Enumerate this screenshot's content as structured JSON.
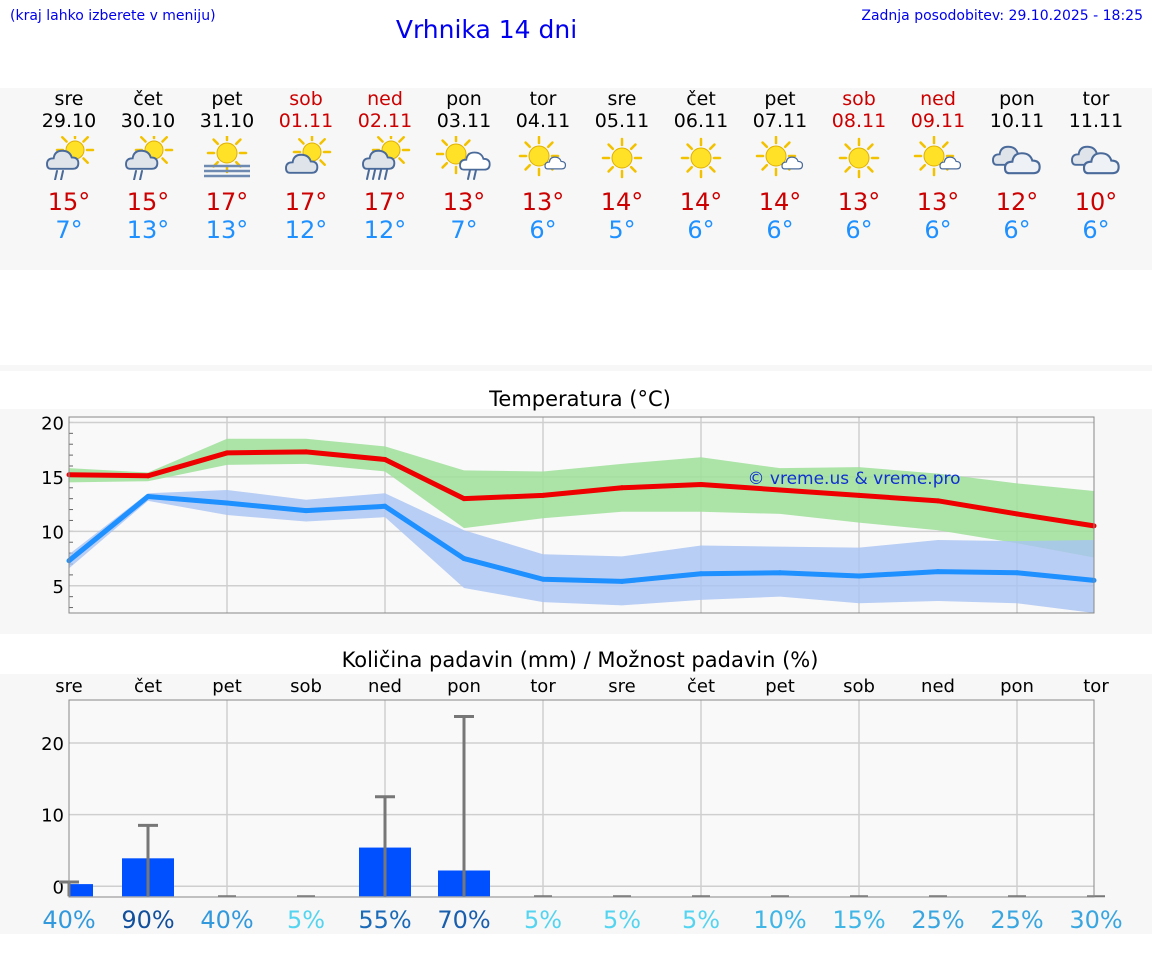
{
  "header": {
    "hint": "(kraj lahko izberete v meniju)",
    "title": "Vrhnika 14 dni",
    "updated": "Zadnja posodobitev: 29.10.2025 - 18:25"
  },
  "days": [
    {
      "name": "sre",
      "date": "29.10",
      "weekend": false,
      "icon": "sun-cloud-rain-icon",
      "tmax": "15°",
      "tmin": "7°"
    },
    {
      "name": "čet",
      "date": "30.10",
      "weekend": false,
      "icon": "sun-cloud-rain-icon",
      "tmax": "15°",
      "tmin": "13°"
    },
    {
      "name": "pet",
      "date": "31.10",
      "weekend": false,
      "icon": "sun-fog-icon",
      "tmax": "17°",
      "tmin": "13°"
    },
    {
      "name": "sob",
      "date": "01.11",
      "weekend": true,
      "icon": "sun-cloud-icon",
      "tmax": "17°",
      "tmin": "12°"
    },
    {
      "name": "ned",
      "date": "02.11",
      "weekend": true,
      "icon": "sun-cloud-heavy-rain-icon",
      "tmax": "17°",
      "tmin": "12°"
    },
    {
      "name": "pon",
      "date": "03.11",
      "weekend": false,
      "icon": "sun-cloud-light-rain-icon",
      "tmax": "13°",
      "tmin": "7°"
    },
    {
      "name": "tor",
      "date": "04.11",
      "weekend": false,
      "icon": "sun-small-cloud-icon",
      "tmax": "13°",
      "tmin": "6°"
    },
    {
      "name": "sre",
      "date": "05.11",
      "weekend": false,
      "icon": "sun-icon",
      "tmax": "14°",
      "tmin": "5°"
    },
    {
      "name": "čet",
      "date": "06.11",
      "weekend": false,
      "icon": "sun-icon",
      "tmax": "14°",
      "tmin": "6°"
    },
    {
      "name": "pet",
      "date": "07.11",
      "weekend": false,
      "icon": "sun-small-cloud-icon",
      "tmax": "14°",
      "tmin": "6°"
    },
    {
      "name": "sob",
      "date": "08.11",
      "weekend": true,
      "icon": "sun-icon",
      "tmax": "13°",
      "tmin": "6°"
    },
    {
      "name": "ned",
      "date": "09.11",
      "weekend": true,
      "icon": "sun-small-cloud-icon",
      "tmax": "13°",
      "tmin": "6°"
    },
    {
      "name": "pon",
      "date": "10.11",
      "weekend": false,
      "icon": "clouds-icon",
      "tmax": "12°",
      "tmin": "6°"
    },
    {
      "name": "tor",
      "date": "11.11",
      "weekend": false,
      "icon": "clouds-icon",
      "tmax": "10°",
      "tmin": "6°"
    }
  ],
  "chart_data": [
    {
      "type": "line",
      "title": "Temperatura (°C)",
      "watermark": "© vreme.us & vreme.pro",
      "ylim": [
        2.5,
        20.5
      ],
      "yticks": [
        5,
        10,
        15,
        20
      ],
      "x_days": 14,
      "series": [
        {
          "name": "max",
          "color": "#ee0000",
          "values": [
            15.2,
            15.1,
            17.2,
            17.3,
            16.6,
            13.0,
            13.3,
            14.0,
            14.3,
            13.8,
            13.3,
            12.8,
            11.6,
            10.5
          ],
          "band_low": [
            14.5,
            14.6,
            16.1,
            16.2,
            15.5,
            10.3,
            11.2,
            11.8,
            11.8,
            11.6,
            10.8,
            10.1,
            8.9,
            7.6
          ],
          "band_high": [
            15.8,
            15.4,
            18.5,
            18.5,
            17.8,
            15.6,
            15.5,
            16.2,
            16.8,
            15.8,
            15.9,
            15.3,
            14.4,
            13.7
          ],
          "band_color": "#9fe09a"
        },
        {
          "name": "min",
          "color": "#1e90ff",
          "values": [
            7.3,
            13.2,
            12.6,
            11.9,
            12.3,
            7.5,
            5.6,
            5.4,
            6.1,
            6.2,
            5.9,
            6.3,
            6.2,
            5.5
          ],
          "band_low": [
            6.6,
            12.8,
            11.5,
            10.9,
            11.3,
            4.8,
            3.5,
            3.2,
            3.7,
            4.0,
            3.4,
            3.6,
            3.4,
            2.5
          ],
          "band_high": [
            7.9,
            13.5,
            13.8,
            12.9,
            13.5,
            10.1,
            7.9,
            7.7,
            8.7,
            8.6,
            8.5,
            9.2,
            9.1,
            9.2
          ],
          "band_color": "#a9c3f3"
        }
      ]
    },
    {
      "type": "bar",
      "title": "Količina padavin (mm) / Možnost padavin (%)",
      "categories": [
        "sre",
        "čet",
        "pet",
        "sob",
        "ned",
        "pon",
        "tor",
        "sre",
        "čet",
        "pet",
        "sob",
        "ned",
        "pon",
        "tor"
      ],
      "ylim": [
        -1.5,
        26
      ],
      "yticks": [
        0,
        10,
        20
      ],
      "values": [
        0.3,
        3.9,
        0,
        0,
        5.4,
        2.2,
        0,
        0,
        0,
        0,
        0,
        0,
        0,
        0
      ],
      "error_high": [
        0.6,
        8.5,
        0,
        0,
        12.5,
        23.7,
        0,
        0,
        0,
        0,
        0,
        0,
        0,
        0
      ],
      "bar_color": "#0050ff",
      "probability": [
        {
          "label": "40%",
          "color": "#3399dd"
        },
        {
          "label": "90%",
          "color": "#124f9c"
        },
        {
          "label": "40%",
          "color": "#3399dd"
        },
        {
          "label": "5%",
          "color": "#55d4f0"
        },
        {
          "label": "55%",
          "color": "#1a6ab8"
        },
        {
          "label": "70%",
          "color": "#1a5fae"
        },
        {
          "label": "5%",
          "color": "#55d4f0"
        },
        {
          "label": "5%",
          "color": "#55d4f0"
        },
        {
          "label": "5%",
          "color": "#55d4f0"
        },
        {
          "label": "10%",
          "color": "#3fb6e6"
        },
        {
          "label": "15%",
          "color": "#3fb6e6"
        },
        {
          "label": "25%",
          "color": "#3aa6e0"
        },
        {
          "label": "25%",
          "color": "#3aa6e0"
        },
        {
          "label": "30%",
          "color": "#3aa6e0"
        }
      ]
    }
  ]
}
